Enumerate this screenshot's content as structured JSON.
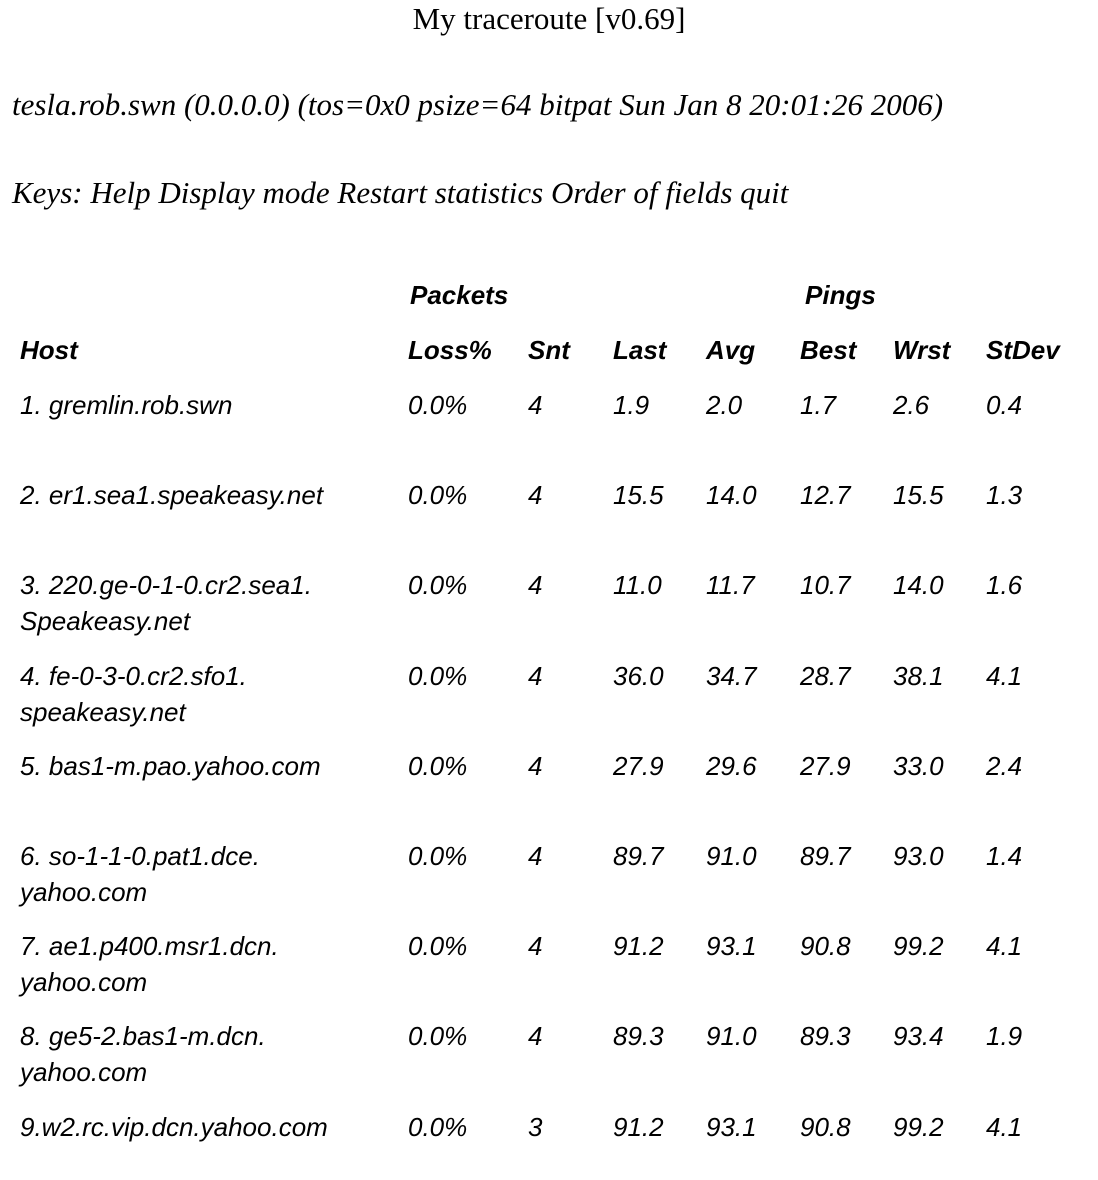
{
  "header": {
    "title": "My traceroute [v0.69]",
    "info": "tesla.rob.swn (0.0.0.0) (tos=0x0 psize=64 bitpat Sun Jan 8 20:01:26 2006)",
    "keys": "Keys: Help Display mode Restart statistics Order of fields quit"
  },
  "table": {
    "groups": [
      "Packets",
      "Pings"
    ],
    "columns": [
      "Host",
      "Loss%",
      "Snt",
      "Last",
      "Avg",
      "Best",
      "Wrst",
      "StDev"
    ],
    "rows": [
      [
        [
          "1. gremlin.rob.swn"
        ],
        "0.0%",
        "4",
        "1.9",
        "2.0",
        "1.7",
        "2.6",
        "0.4"
      ],
      [
        [
          "2. er1.sea1.speakeasy.net"
        ],
        "0.0%",
        "4",
        "15.5",
        "14.0",
        "12.7",
        "15.5",
        "1.3"
      ],
      [
        [
          "3. 220.ge-0-1-0.cr2.sea1.",
          "Speakeasy.net"
        ],
        "0.0%",
        "4",
        "11.0",
        "11.7",
        "10.7",
        "14.0",
        "1.6"
      ],
      [
        [
          "4. fe-0-3-0.cr2.sfo1.",
          "speakeasy.net"
        ],
        "0.0%",
        "4",
        "36.0",
        "34.7",
        "28.7",
        "38.1",
        "4.1"
      ],
      [
        [
          "5. bas1-m.pao.yahoo.com"
        ],
        "0.0%",
        "4",
        "27.9",
        "29.6",
        "27.9",
        "33.0",
        "2.4"
      ],
      [
        [
          "6. so-1-1-0.pat1.dce.",
          "yahoo.com"
        ],
        "0.0%",
        "4",
        "89.7",
        "91.0",
        "89.7",
        "93.0",
        "1.4"
      ],
      [
        [
          "7. ae1.p400.msr1.dcn.",
          "yahoo.com"
        ],
        "0.0%",
        "4",
        "91.2",
        "93.1",
        "90.8",
        "99.2",
        "4.1"
      ],
      [
        [
          "8. ge5-2.bas1-m.dcn.",
          "yahoo.com"
        ],
        "0.0%",
        "4",
        "89.3",
        "91.0",
        "89.3",
        "93.4",
        "1.9"
      ],
      [
        [
          "9.w2.rc.vip.dcn.yahoo.com"
        ],
        "0.0%",
        "3",
        "91.2",
        "93.1",
        "90.8",
        "99.2",
        "4.1"
      ]
    ]
  }
}
